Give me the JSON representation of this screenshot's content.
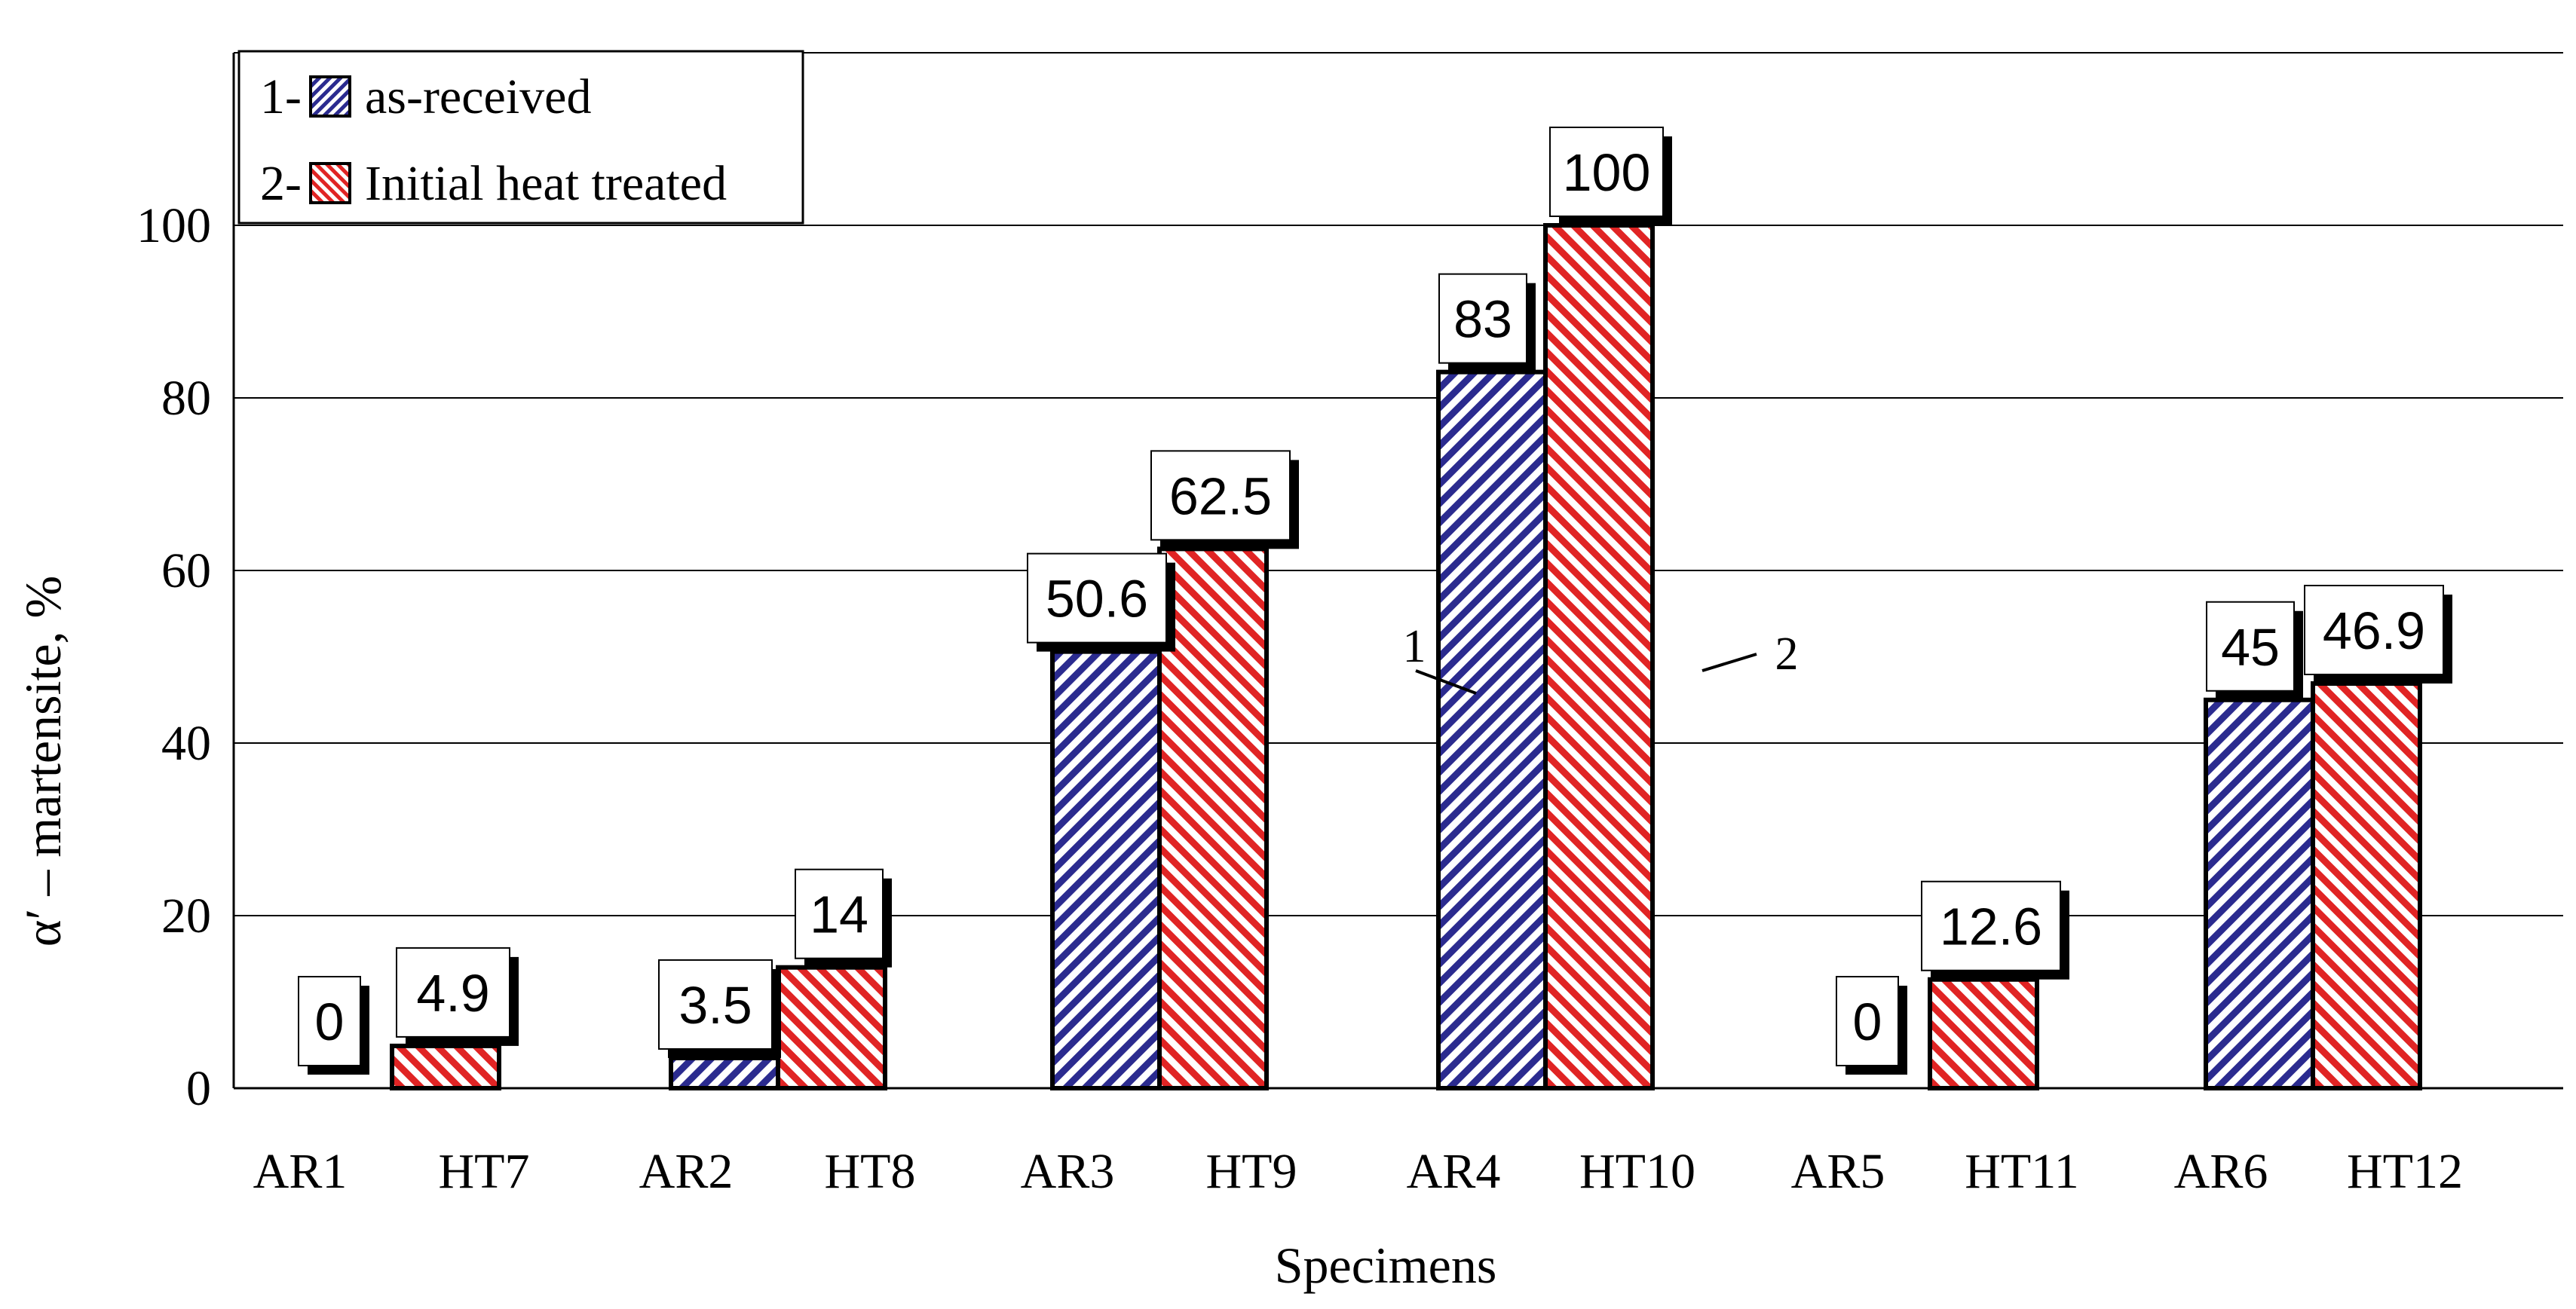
{
  "colors": {
    "series1": "#2b2b8f",
    "series2": "#e02424",
    "grid": "#000000",
    "label_box": "#ffffff"
  },
  "chart_data": {
    "type": "bar",
    "xlabel": "Specimens",
    "ylabel": "α′ – martensite, %",
    "ylim": [
      0,
      120
    ],
    "y_ticks": [
      "0",
      "20",
      "40",
      "60",
      "80",
      "100"
    ],
    "grid": true,
    "legend_position": "top-left",
    "series": [
      {
        "name": "as-received",
        "legend_prefix": "1-",
        "marker_label": "1",
        "categories": [
          "AR1",
          "AR2",
          "AR3",
          "AR4",
          "AR5",
          "AR6"
        ],
        "values": [
          0,
          3.5,
          50.6,
          83,
          0,
          45
        ],
        "labels": [
          "0",
          "3.5",
          "50.6",
          "83",
          "0",
          "45"
        ]
      },
      {
        "name": "Initial heat treated",
        "legend_prefix": "2-",
        "marker_label": "2",
        "categories": [
          "HT7",
          "HT8",
          "HT9",
          "HT10",
          "HT11",
          "HT12"
        ],
        "values": [
          4.9,
          14,
          62.5,
          100,
          12.6,
          46.9
        ],
        "labels": [
          "4.9",
          "14",
          "62.5",
          "100",
          "12.6",
          "46.9"
        ]
      }
    ]
  }
}
